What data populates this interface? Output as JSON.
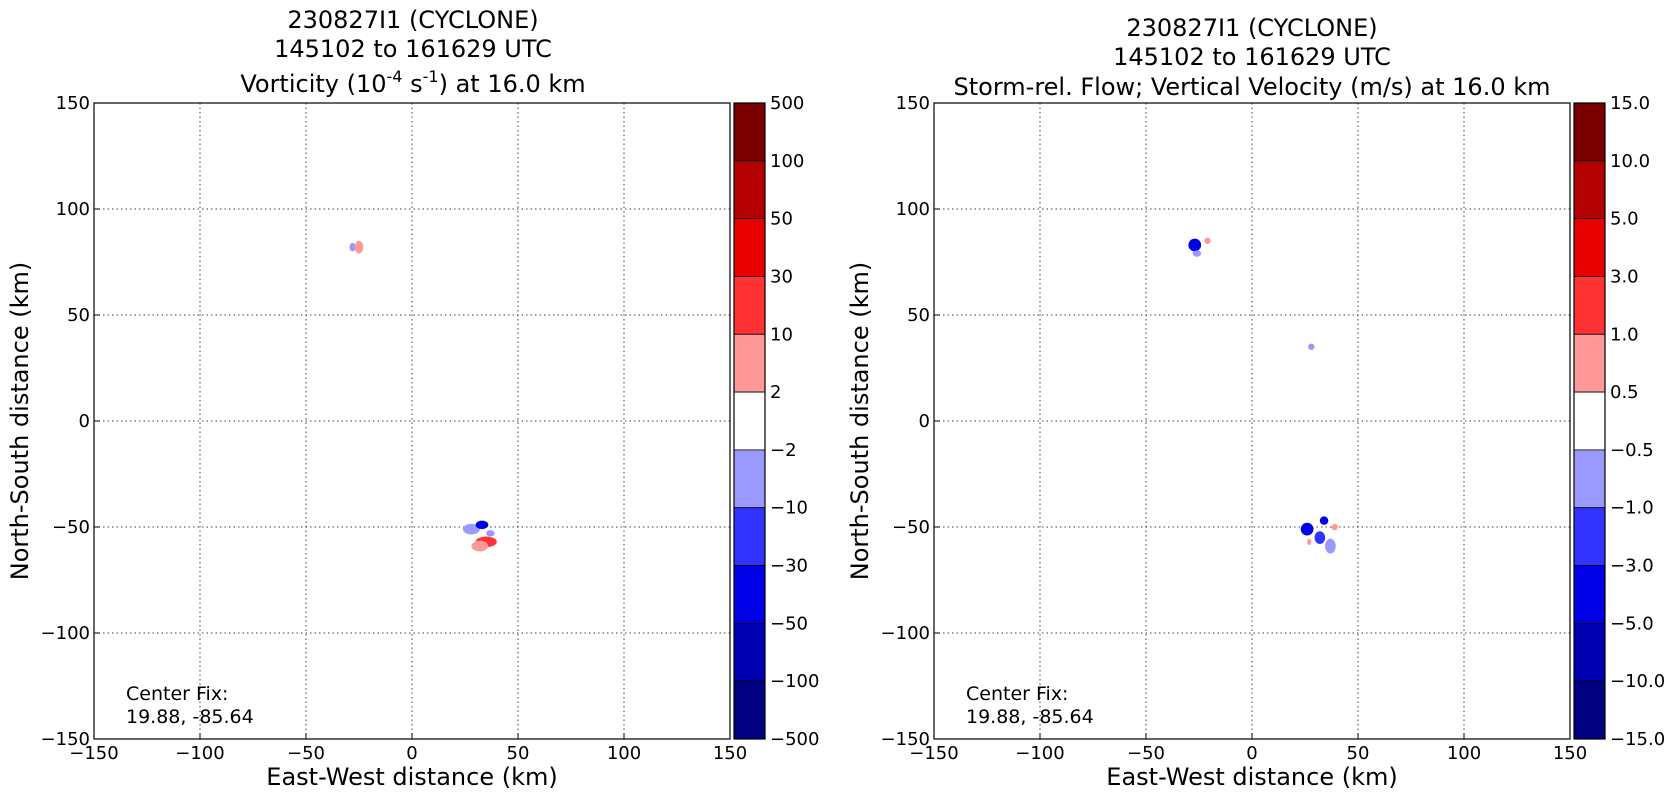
{
  "panels": [
    {
      "title_lines": [
        "230827I1 (CYCLONE)",
        "145102 to 161629 UTC"
      ],
      "title_line3": {
        "pre": "Vorticity (10",
        "sup1": "-4",
        "mid": " s",
        "sup2": "-1",
        "post": ") at 16.0 km"
      },
      "center_fix_label": "Center Fix:",
      "center_fix_value": "19.88, -85.64",
      "colorbar_labels": [
        "500",
        "100",
        "50",
        "30",
        "10",
        "2",
        "−2",
        "−10",
        "−30",
        "−50",
        "−100",
        "−500"
      ]
    },
    {
      "title_lines": [
        "230827I1 (CYCLONE)",
        "145102 to 161629 UTC"
      ],
      "title_line3": {
        "pre": "Storm-rel. Flow; Vertical Velocity (m/s) at 16.0 km",
        "sup1": "",
        "mid": "",
        "sup2": "",
        "post": ""
      },
      "center_fix_label": "Center Fix:",
      "center_fix_value": "19.88, -85.64",
      "colorbar_labels": [
        "15.0",
        "10.0",
        "5.0",
        "3.0",
        "1.0",
        "0.5",
        "−0.5",
        "−1.0",
        "−3.0",
        "−5.0",
        "−10.0",
        "−15.0"
      ]
    }
  ],
  "axis_labels": {
    "x": "East-West distance (km)",
    "y": "North-South distance (km)"
  },
  "tick_labels": [
    "−150",
    "−100",
    "−50",
    "0",
    "50",
    "100",
    "150"
  ],
  "colorbar_colors": [
    "#7a0000",
    "#b30000",
    "#e60000",
    "#ff3333",
    "#ff9999",
    "#ffffff",
    "#9999ff",
    "#3333ff",
    "#0000e6",
    "#0000b3",
    "#000080"
  ],
  "chart_data": [
    {
      "type": "heatmap",
      "title": "230827I1 (CYCLONE) 145102 to 161629 UTC Vorticity (10^-4 s^-1) at 16.0 km",
      "xlabel": "East-West distance (km)",
      "ylabel": "North-South distance (km)",
      "xlim": [
        -150,
        150
      ],
      "ylim": [
        -150,
        150
      ],
      "grid": true,
      "colorbar_levels": [
        -500,
        -100,
        -50,
        -30,
        -10,
        -2,
        2,
        10,
        30,
        50,
        100,
        500
      ],
      "features": [
        {
          "x": -28,
          "y": 82,
          "w": 3,
          "h": 4,
          "value": -5
        },
        {
          "x": -25,
          "y": 82,
          "w": 4,
          "h": 6,
          "value": 5
        },
        {
          "x": 28,
          "y": -51,
          "w": 8,
          "h": 5,
          "value": -5
        },
        {
          "x": 33,
          "y": -49,
          "w": 6,
          "h": 4,
          "value": -40
        },
        {
          "x": 35,
          "y": -57,
          "w": 10,
          "h": 5,
          "value": 20
        },
        {
          "x": 32,
          "y": -59,
          "w": 8,
          "h": 5,
          "value": 5
        },
        {
          "x": 37,
          "y": -53,
          "w": 4,
          "h": 3,
          "value": -5
        }
      ]
    },
    {
      "type": "heatmap",
      "title": "230827I1 (CYCLONE) 145102 to 161629 UTC Storm-rel. Flow; Vertical Velocity (m/s) at 16.0 km",
      "xlabel": "East-West distance (km)",
      "ylabel": "North-South distance (km)",
      "xlim": [
        -150,
        150
      ],
      "ylim": [
        -150,
        150
      ],
      "grid": true,
      "colorbar_levels": [
        -15.0,
        -10.0,
        -5.0,
        -3.0,
        -1.0,
        -0.5,
        0.5,
        1.0,
        3.0,
        5.0,
        10.0,
        15.0
      ],
      "features": [
        {
          "x": -27,
          "y": 83,
          "w": 6,
          "h": 6,
          "value": -4
        },
        {
          "x": -26,
          "y": 79,
          "w": 4,
          "h": 3,
          "value": -0.8
        },
        {
          "x": -21,
          "y": 85,
          "w": 3,
          "h": 3,
          "value": 0.8
        },
        {
          "x": 28,
          "y": 35,
          "w": 3,
          "h": 3,
          "value": -0.8
        },
        {
          "x": 26,
          "y": -51,
          "w": 6,
          "h": 6,
          "value": -4
        },
        {
          "x": 34,
          "y": -47,
          "w": 4,
          "h": 4,
          "value": -4
        },
        {
          "x": 32,
          "y": -55,
          "w": 5,
          "h": 6,
          "value": -2
        },
        {
          "x": 37,
          "y": -59,
          "w": 5,
          "h": 7,
          "value": -0.8
        },
        {
          "x": 39,
          "y": -50,
          "w": 3,
          "h": 3,
          "value": 0.8
        },
        {
          "x": 27,
          "y": -57,
          "w": 2,
          "h": 3,
          "value": 0.8
        }
      ]
    }
  ]
}
